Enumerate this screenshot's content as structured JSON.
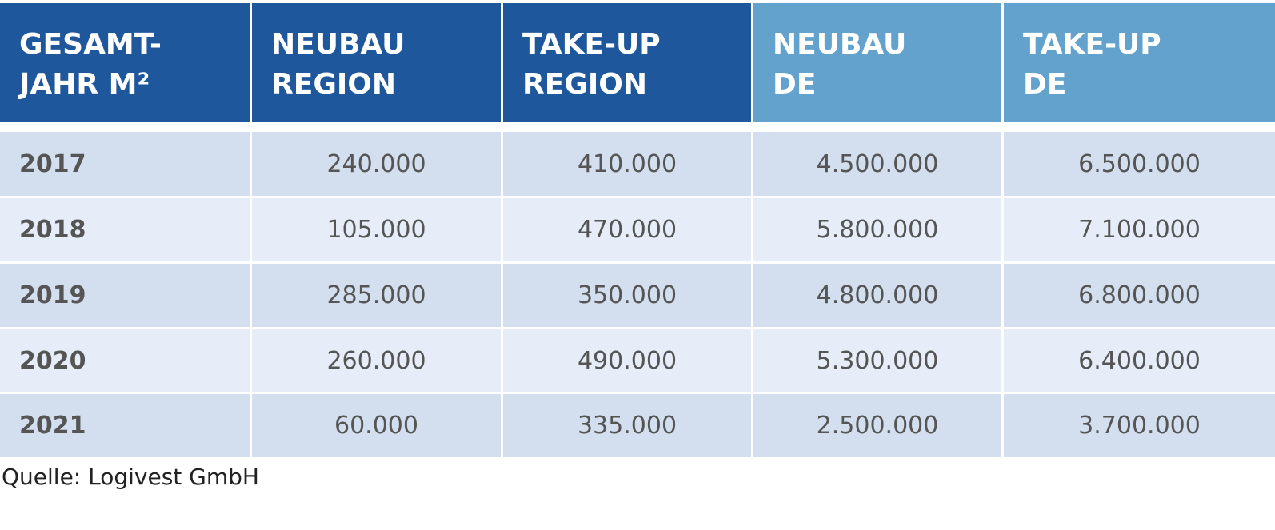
{
  "table": {
    "headers": [
      [
        "GESAMT-",
        "JAHR M²"
      ],
      [
        "NEUBAU",
        "REGION"
      ],
      [
        "TAKE-UP",
        "REGION"
      ],
      [
        "NEUBAU",
        "DE"
      ],
      [
        "TAKE-UP",
        "DE"
      ]
    ],
    "rows": [
      [
        "2017",
        "240.000",
        "410.000",
        "4.500.000",
        "6.500.000"
      ],
      [
        "2018",
        "105.000",
        "470.000",
        "5.800.000",
        "7.100.000"
      ],
      [
        "2019",
        "285.000",
        "350.000",
        "4.800.000",
        "6.800.000"
      ],
      [
        "2020",
        "260.000",
        "490.000",
        "5.300.000",
        "6.400.000"
      ],
      [
        "2021",
        "60.000",
        "335.000",
        "2.500.000",
        "3.700.000"
      ]
    ]
  },
  "source": "Quelle: Logivest GmbH"
}
